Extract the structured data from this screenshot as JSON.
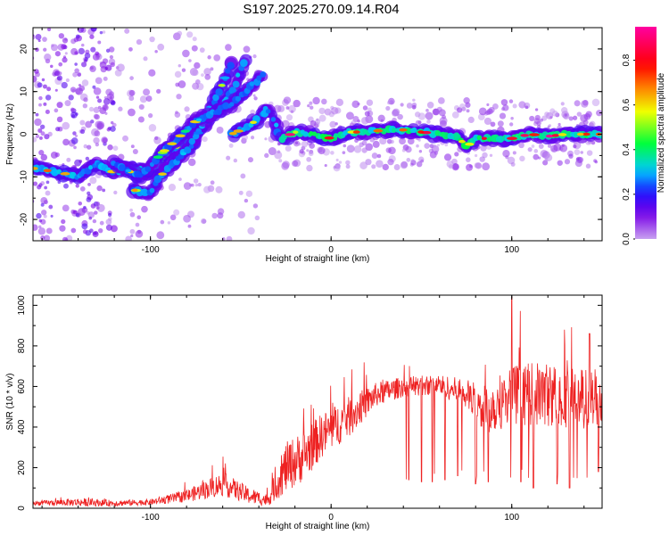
{
  "figure": {
    "title": "S197.2025.270.09.14.R04"
  },
  "chart_data": [
    {
      "type": "heatmap",
      "name": "spectrogram",
      "xlabel": "Height of straight line (km)",
      "ylabel": "Frequency (Hz)",
      "xlim": [
        -165,
        150
      ],
      "ylim": [
        -25,
        25
      ],
      "xticks": [
        -100,
        0,
        100
      ],
      "xtick_labels": [
        "-100",
        "0",
        "100"
      ],
      "yticks": [
        -20,
        -10,
        0,
        10,
        20
      ],
      "ytick_labels": [
        "-20",
        "-10",
        "0",
        "10",
        "20"
      ],
      "colorbar": {
        "label": "Normalized spectral amplitude",
        "range": [
          0,
          0.95
        ],
        "ticks": [
          0.0,
          0.2,
          0.4,
          0.6,
          0.8
        ],
        "tick_labels": [
          "0.0",
          "0.2",
          "0.4",
          "0.6",
          "0.8"
        ]
      },
      "ridges": [
        {
          "points": [
            [
              -165,
              -8
            ],
            [
              -150,
              -9
            ],
            [
              -140,
              -10
            ],
            [
              -130,
              -7
            ],
            [
              -120,
              -9
            ],
            [
              -110,
              -8
            ],
            [
              -100,
              -9
            ],
            [
              -90,
              -4
            ],
            [
              -80,
              -2
            ],
            [
              -70,
              2
            ],
            [
              -62,
              6
            ],
            [
              -55,
              10
            ],
            [
              -48,
              17
            ]
          ],
          "amp": 0.3
        },
        {
          "points": [
            [
              -110,
              -13
            ],
            [
              -100,
              -14
            ],
            [
              -95,
              -10
            ],
            [
              -85,
              -6
            ],
            [
              -78,
              -3
            ],
            [
              -70,
              3
            ],
            [
              -62,
              10
            ],
            [
              -55,
              17
            ]
          ],
          "amp": 0.25
        },
        {
          "points": [
            [
              -120,
              -7
            ],
            [
              -105,
              -10
            ],
            [
              -95,
              -5
            ],
            [
              -85,
              -1
            ],
            [
              -75,
              3
            ],
            [
              -65,
              5
            ],
            [
              -55,
              7
            ],
            [
              -45,
              11
            ],
            [
              -38,
              14
            ]
          ],
          "amp": 0.22
        },
        {
          "points": [
            [
              -55,
              0
            ],
            [
              -45,
              2
            ],
            [
              -40,
              4
            ],
            [
              -35,
              6
            ],
            [
              -30,
              1
            ],
            [
              -27,
              -1
            ]
          ],
          "amp": 0.3
        },
        {
          "points": [
            [
              -27,
              -1
            ],
            [
              -20,
              0.5
            ],
            [
              -10,
              0
            ],
            [
              0,
              -1
            ],
            [
              10,
              0.5
            ],
            [
              20,
              0.5
            ],
            [
              30,
              1
            ],
            [
              40,
              1
            ],
            [
              50,
              0.5
            ],
            [
              60,
              0
            ],
            [
              70,
              -0.5
            ],
            [
              75,
              -3
            ],
            [
              80,
              -1
            ],
            [
              90,
              -1
            ],
            [
              100,
              -1
            ],
            [
              110,
              0
            ],
            [
              120,
              -0.5
            ],
            [
              130,
              0
            ],
            [
              140,
              0
            ],
            [
              150,
              0
            ]
          ],
          "amp": 0.55
        }
      ]
    },
    {
      "type": "line",
      "name": "snr",
      "xlabel": "Height of straight line (km)",
      "ylabel": "SNR (10 * v/v)",
      "xlim": [
        -165,
        150
      ],
      "ylim": [
        0,
        1050
      ],
      "xticks": [
        -100,
        0,
        100
      ],
      "xtick_labels": [
        "-100",
        "0",
        "100"
      ],
      "yticks": [
        0,
        200,
        400,
        600,
        800,
        1000
      ],
      "ytick_labels": [
        "0",
        "200",
        "400",
        "600",
        "800",
        "1000"
      ],
      "color": "#ee2222",
      "envelope": [
        {
          "x": -165,
          "base": 25,
          "spread": 20
        },
        {
          "x": -140,
          "base": 30,
          "spread": 40
        },
        {
          "x": -120,
          "base": 25,
          "spread": 30
        },
        {
          "x": -100,
          "base": 30,
          "spread": 30
        },
        {
          "x": -80,
          "base": 60,
          "spread": 60
        },
        {
          "x": -60,
          "base": 120,
          "spread": 120
        },
        {
          "x": -45,
          "base": 60,
          "spread": 80
        },
        {
          "x": -35,
          "base": 40,
          "spread": 60
        },
        {
          "x": -25,
          "base": 200,
          "spread": 250
        },
        {
          "x": -15,
          "base": 260,
          "spread": 250
        },
        {
          "x": -5,
          "base": 360,
          "spread": 220
        },
        {
          "x": 10,
          "base": 450,
          "spread": 200
        },
        {
          "x": 25,
          "base": 560,
          "spread": 120
        },
        {
          "x": 40,
          "base": 600,
          "spread": 100
        },
        {
          "x": 60,
          "base": 610,
          "spread": 100
        },
        {
          "x": 75,
          "base": 560,
          "spread": 150
        },
        {
          "x": 85,
          "base": 480,
          "spread": 250
        },
        {
          "x": 100,
          "base": 560,
          "spread": 300
        },
        {
          "x": 120,
          "base": 560,
          "spread": 320
        },
        {
          "x": 140,
          "base": 540,
          "spread": 300
        },
        {
          "x": 150,
          "base": 560,
          "spread": 280
        }
      ],
      "spikes_high": [
        [
          100,
          1040
        ],
        [
          112,
          860
        ],
        [
          132,
          1020
        ],
        [
          143,
          860
        ]
      ],
      "dips": [
        [
          43,
          140
        ],
        [
          50,
          130
        ],
        [
          56,
          130
        ],
        [
          63,
          140
        ],
        [
          70,
          160
        ],
        [
          80,
          120
        ],
        [
          87,
          130
        ],
        [
          105,
          130
        ],
        [
          112,
          100
        ],
        [
          125,
          120
        ],
        [
          132,
          100
        ],
        [
          148,
          180
        ]
      ]
    }
  ]
}
